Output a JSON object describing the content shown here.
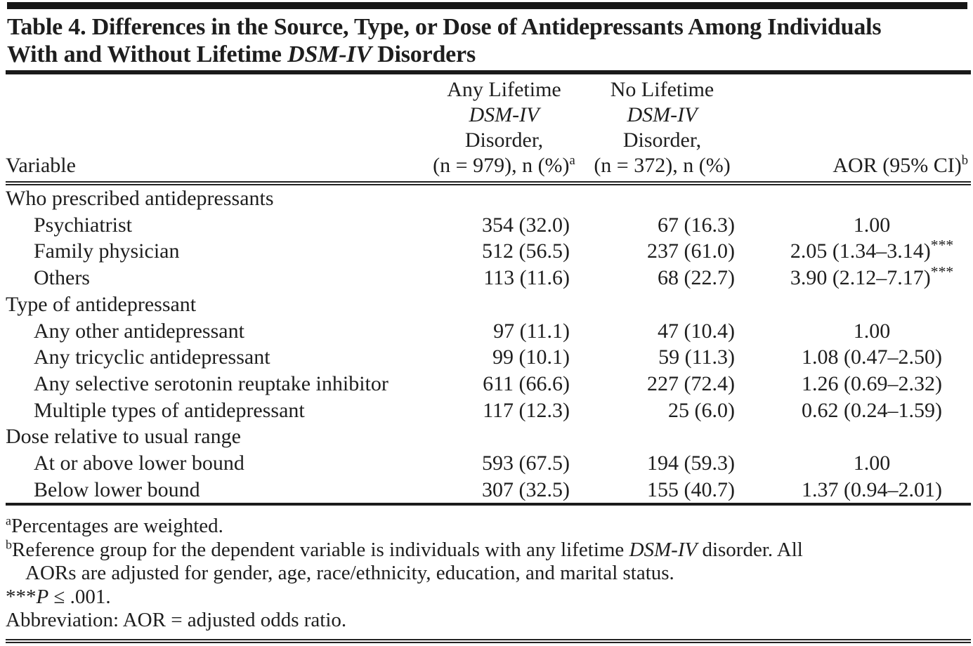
{
  "title": {
    "line1": "Table 4. Differences in the Source, Type, or Dose of Antidepressants Among Individuals",
    "line2_pre": "With and Without Lifetime ",
    "line2_italic": "DSM-IV",
    "line2_post": " Disorders"
  },
  "header": {
    "col_variable": "Variable",
    "col_any": {
      "line1": "Any Lifetime",
      "line2_italic": "DSM-IV",
      "line3": "Disorder,",
      "line4": "(n = 979), n (%)",
      "sup": "a"
    },
    "col_no": {
      "line1": "No Lifetime",
      "line2_italic": "DSM-IV",
      "line3": "Disorder,",
      "line4": "(n = 372), n (%)",
      "sup": ""
    },
    "col_aor": {
      "label": "AOR (95% CI)",
      "sup": "b"
    }
  },
  "rows": [
    {
      "label": "Who prescribed antidepressants",
      "any": "",
      "no": "",
      "aor": "",
      "sup": ""
    },
    {
      "label": "Psychiatrist",
      "any": "354 (32.0)",
      "no": "67 (16.3)",
      "aor": "1.00",
      "sup": ""
    },
    {
      "label": "Family physician",
      "any": "512 (56.5)",
      "no": "237 (61.0)",
      "aor": "2.05 (1.34–3.14)",
      "sup": "***"
    },
    {
      "label": "Others",
      "any": "113 (11.6)",
      "no": "68 (22.7)",
      "aor": "3.90 (2.12–7.17)",
      "sup": "***"
    },
    {
      "label": "Type of antidepressant",
      "any": "",
      "no": "",
      "aor": "",
      "sup": ""
    },
    {
      "label": "Any other antidepressant",
      "any": "97 (11.1)",
      "no": "47 (10.4)",
      "aor": "1.00",
      "sup": ""
    },
    {
      "label": "Any tricyclic antidepressant",
      "any": "99 (10.1)",
      "no": "59 (11.3)",
      "aor": "1.08 (0.47–2.50)",
      "sup": ""
    },
    {
      "label": "Any selective serotonin reuptake inhibitor",
      "any": "611 (66.6)",
      "no": "227 (72.4)",
      "aor": "1.26 (0.69–2.32)",
      "sup": ""
    },
    {
      "label": "Multiple types of antidepressant",
      "any": "117 (12.3)",
      "no": "25 (6.0)",
      "aor": "0.62 (0.24–1.59)",
      "sup": ""
    },
    {
      "label": "Dose relative to usual range",
      "any": "",
      "no": "",
      "aor": "",
      "sup": ""
    },
    {
      "label": "At or above lower bound",
      "any": "593 (67.5)",
      "no": "194 (59.3)",
      "aor": "1.00",
      "sup": ""
    },
    {
      "label": "Below lower bound",
      "any": "307 (32.5)",
      "no": "155 (40.7)",
      "aor": "1.37 (0.94–2.01)",
      "sup": ""
    }
  ],
  "footnotes": {
    "a_sup": "a",
    "a_text": "Percentages are weighted.",
    "b_sup": "b",
    "b_pre": "Reference group for the dependent variable is individuals with any lifetime ",
    "b_italic": "DSM-IV",
    "b_post": " disorder. All",
    "b_line2": "AORs are adjusted for gender, age, race/ethnicity, education, and marital status.",
    "sig_stars": "***",
    "sig_p": "P",
    "sig_rest": " ≤ .001.",
    "abbr": "Abbreviation: AOR = adjusted odds ratio."
  },
  "colors": {
    "ink": "#1e1e1e",
    "rule": "#1a1a1a",
    "background": "#ffffff"
  }
}
